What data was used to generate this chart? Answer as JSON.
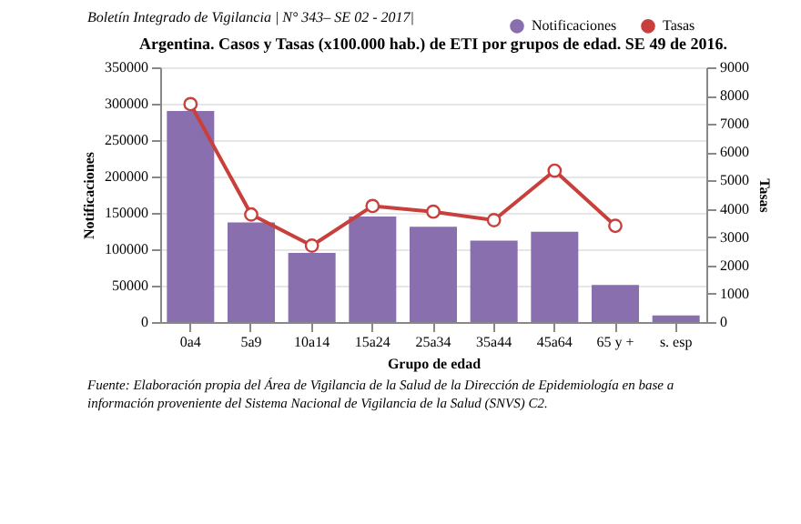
{
  "chart_data": {
    "type": "bar",
    "title": "Argentina. Casos y Tasas (x100.000 hab.) de ETI por grupos de edad. SE 49 de 2016.",
    "xlabel": "Grupo de edad",
    "ylabel": "Notificaciones",
    "y2label": "Tasas",
    "categories": [
      "0a4",
      "5a9",
      "10a14",
      "15a24",
      "25a34",
      "35a44",
      "45a64",
      "65 y +",
      "s. esp"
    ],
    "series": [
      {
        "name": "Notificaciones",
        "color": "#8a6fae",
        "values": [
          290000,
          137000,
          95000,
          145000,
          131000,
          112000,
          124000,
          51000,
          9000
        ]
      },
      {
        "name": "Tasas",
        "type": "line",
        "axis": "y2",
        "color": "#c8403c",
        "values": [
          7700,
          3800,
          2700,
          4100,
          3900,
          3600,
          5350,
          3400,
          null
        ]
      }
    ],
    "ylim": [
      0,
      350000
    ],
    "yticks": [
      0,
      50000,
      100000,
      150000,
      200000,
      250000,
      300000,
      350000
    ],
    "y2lim": [
      0,
      9000
    ],
    "y2ticks": [
      0,
      1000,
      2000,
      3000,
      4000,
      5000,
      6000,
      7000,
      8000,
      9000
    ],
    "grid": "y",
    "legend": "top right",
    "marker": "circle",
    "annotations": [
      "Boletín Integrado de Vigilancia | N° 343– SE 02 - 2017|",
      "Fuente: Elaboración propia del Área de Vigilancia de la Salud de la Dirección de Epidemiología en base a información proveniente del Sistema Nacional de Vigilancia de la Salud (SNVS) C2."
    ]
  }
}
